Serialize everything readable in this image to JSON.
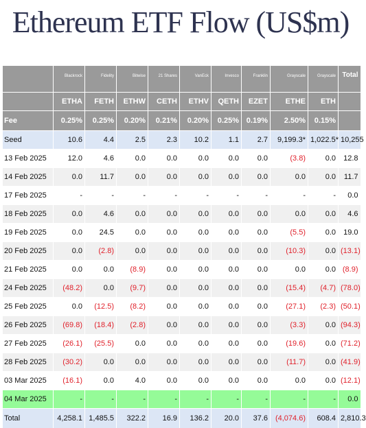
{
  "title": "Ethereum ETF Flow (US$m)",
  "colors": {
    "header_bg": "#9a9a9a",
    "seed_total_bg": "#dce6f5",
    "highlight_row": "#95fb98",
    "negative": "#e0202a"
  },
  "header": {
    "issuers": [
      "",
      "Blackrock",
      "Fidelity",
      "Bitwise",
      "21 Shares",
      "VanEck",
      "Invesco",
      "Franklin",
      "Grayscale",
      "Grayscale",
      "Total"
    ],
    "tickers": [
      "",
      "ETHA",
      "FETH",
      "ETHW",
      "CETH",
      "ETHV",
      "QETH",
      "EZET",
      "ETHE",
      "ETH",
      ""
    ],
    "fees": [
      "Fee",
      "0.25%",
      "0.25%",
      "0.20%",
      "0.21%",
      "0.20%",
      "0.25%",
      "0.19%",
      "2.50%",
      "0.15%",
      ""
    ]
  },
  "seed": [
    "Seed",
    "10.6",
    "4.4",
    "2.5",
    "2.3",
    "10.2",
    "1.1",
    "2.7",
    "9,199.3*",
    "1,022.5*",
    "10,255"
  ],
  "rows": [
    [
      "13 Feb 2025",
      "12.0",
      "4.6",
      "0.0",
      "0.0",
      "0.0",
      "0.0",
      "0.0",
      "(3.8)",
      "0.0",
      "12.8"
    ],
    [
      "14 Feb 2025",
      "0.0",
      "11.7",
      "0.0",
      "0.0",
      "0.0",
      "0.0",
      "0.0",
      "0.0",
      "0.0",
      "11.7"
    ],
    [
      "17 Feb 2025",
      "-",
      "-",
      "-",
      "-",
      "-",
      "-",
      "-",
      "-",
      "-",
      "0.0"
    ],
    [
      "18 Feb 2025",
      "0.0",
      "4.6",
      "0.0",
      "0.0",
      "0.0",
      "0.0",
      "0.0",
      "0.0",
      "0.0",
      "4.6"
    ],
    [
      "19 Feb 2025",
      "0.0",
      "24.5",
      "0.0",
      "0.0",
      "0.0",
      "0.0",
      "0.0",
      "(5.5)",
      "0.0",
      "19.0"
    ],
    [
      "20 Feb 2025",
      "0.0",
      "(2.8)",
      "0.0",
      "0.0",
      "0.0",
      "0.0",
      "0.0",
      "(10.3)",
      "0.0",
      "(13.1)"
    ],
    [
      "21 Feb 2025",
      "0.0",
      "0.0",
      "(8.9)",
      "0.0",
      "0.0",
      "0.0",
      "0.0",
      "0.0",
      "0.0",
      "(8.9)"
    ],
    [
      "24 Feb 2025",
      "(48.2)",
      "0.0",
      "(9.7)",
      "0.0",
      "0.0",
      "0.0",
      "0.0",
      "(15.4)",
      "(4.7)",
      "(78.0)"
    ],
    [
      "25 Feb 2025",
      "0.0",
      "(12.5)",
      "(8.2)",
      "0.0",
      "0.0",
      "0.0",
      "0.0",
      "(27.1)",
      "(2.3)",
      "(50.1)"
    ],
    [
      "26 Feb 2025",
      "(69.8)",
      "(18.4)",
      "(2.8)",
      "0.0",
      "0.0",
      "0.0",
      "0.0",
      "(3.3)",
      "0.0",
      "(94.3)"
    ],
    [
      "27 Feb 2025",
      "(26.1)",
      "(25.5)",
      "0.0",
      "0.0",
      "0.0",
      "0.0",
      "0.0",
      "(19.6)",
      "0.0",
      "(71.2)"
    ],
    [
      "28 Feb 2025",
      "(30.2)",
      "0.0",
      "0.0",
      "0.0",
      "0.0",
      "0.0",
      "0.0",
      "(11.7)",
      "0.0",
      "(41.9)"
    ],
    [
      "03 Mar 2025",
      "(16.1)",
      "0.0",
      "4.0",
      "0.0",
      "0.0",
      "0.0",
      "0.0",
      "0.0",
      "0.0",
      "(12.1)"
    ],
    [
      "04 Mar 2025",
      "-",
      "-",
      "-",
      "-",
      "-",
      "-",
      "-",
      "-",
      "-",
      "0.0"
    ]
  ],
  "highlight_row_index": 13,
  "total": [
    "Total",
    "4,258.1",
    "1,485.5",
    "322.2",
    "16.9",
    "136.2",
    "20.0",
    "37.6",
    "(4,074.6)",
    "608.4",
    "2,810.3"
  ]
}
